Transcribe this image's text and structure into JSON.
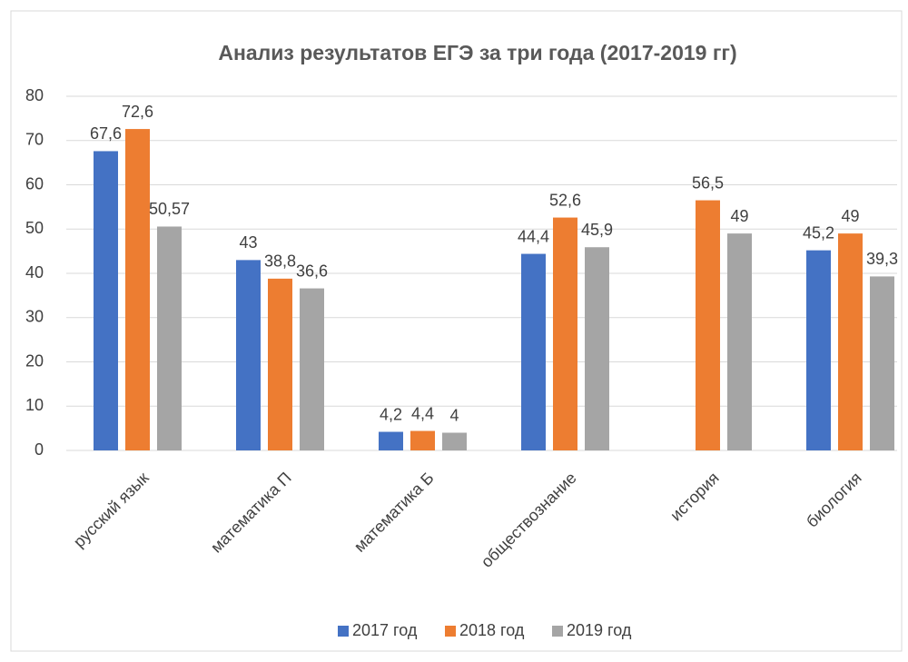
{
  "chart_data": {
    "type": "bar",
    "title": "Анализ результатов ЕГЭ за три года (2017-2019 гг)",
    "categories": [
      "русский язык",
      "математика П",
      "математика Б",
      "обществознание",
      "история",
      "биология"
    ],
    "series": [
      {
        "name": "2017 год",
        "color": "#4472c4",
        "values": [
          67.6,
          43,
          4.2,
          44.4,
          null,
          45.2
        ],
        "value_labels": [
          "67,6",
          "43",
          "4,2",
          "44,4",
          null,
          "45,2"
        ]
      },
      {
        "name": "2018 год",
        "color": "#ed7d31",
        "values": [
          72.6,
          38.8,
          4.4,
          52.6,
          56.5,
          49
        ],
        "value_labels": [
          "72,6",
          "38,8",
          "4,4",
          "52,6",
          "56,5",
          "49"
        ]
      },
      {
        "name": "2019 год",
        "color": "#a5a5a5",
        "values": [
          50.57,
          36.6,
          4,
          45.9,
          49,
          39.3
        ],
        "value_labels": [
          "50,57",
          "36,6",
          "4",
          "45,9",
          "49",
          "39,3"
        ]
      }
    ],
    "ylim": [
      0,
      80
    ],
    "yticks": [
      0,
      10,
      20,
      30,
      40,
      50,
      60,
      70,
      80
    ],
    "grid": true,
    "legend": "bottom"
  }
}
